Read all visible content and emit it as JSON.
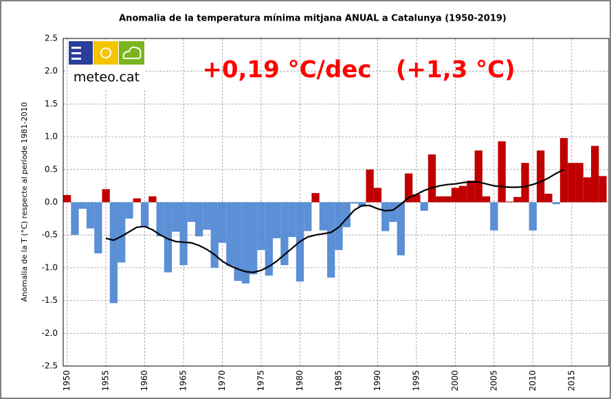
{
  "chart_data": {
    "type": "bar",
    "title": "Anomalia de la temperatura mínima mitjana ANUAL a Catalunya (1950-2019)",
    "y_label": "Anomalia de la T (°C) respecte al període 1981-2010",
    "annotation": "+0,19 °C/dec   (+1,3 °C)",
    "logo_text": "meteo.cat",
    "x": [
      1950,
      1951,
      1952,
      1953,
      1954,
      1955,
      1956,
      1957,
      1958,
      1959,
      1960,
      1961,
      1962,
      1963,
      1964,
      1965,
      1966,
      1967,
      1968,
      1969,
      1970,
      1971,
      1972,
      1973,
      1974,
      1975,
      1976,
      1977,
      1978,
      1979,
      1980,
      1981,
      1982,
      1983,
      1984,
      1985,
      1986,
      1987,
      1988,
      1989,
      1990,
      1991,
      1992,
      1993,
      1994,
      1995,
      1996,
      1997,
      1998,
      1999,
      2000,
      2001,
      2002,
      2003,
      2004,
      2005,
      2006,
      2007,
      2008,
      2009,
      2010,
      2011,
      2012,
      2013,
      2014,
      2015,
      2016,
      2017,
      2018,
      2019
    ],
    "values": [
      0.11,
      -0.5,
      -0.1,
      -0.4,
      -0.78,
      0.2,
      -1.54,
      -0.92,
      -0.25,
      0.06,
      -0.38,
      0.09,
      -0.52,
      -1.07,
      -0.45,
      -0.96,
      -0.3,
      -0.52,
      -0.42,
      -1.0,
      -0.62,
      -0.97,
      -1.2,
      -1.24,
      -1.1,
      -0.73,
      -1.12,
      -0.55,
      -0.96,
      -0.53,
      -1.21,
      -0.44,
      0.14,
      -0.43,
      -1.15,
      -0.73,
      -0.38,
      -0.02,
      -0.07,
      0.5,
      0.22,
      -0.44,
      -0.3,
      -0.81,
      0.44,
      0.12,
      -0.13,
      0.73,
      0.09,
      0.09,
      0.22,
      0.25,
      0.33,
      0.79,
      0.09,
      -0.43,
      0.93,
      0.01,
      0.08,
      0.6,
      -0.43,
      0.79,
      0.13,
      -0.03,
      0.98,
      0.6,
      0.6,
      0.38,
      0.86,
      0.4
    ],
    "positive_color": "#c00000",
    "negative_color": "#5b8fd6",
    "trend": {
      "color": "#000000",
      "x": [
        1955,
        1956,
        1957,
        1958,
        1959,
        1960,
        1961,
        1962,
        1963,
        1964,
        1965,
        1966,
        1967,
        1968,
        1969,
        1970,
        1971,
        1972,
        1973,
        1974,
        1975,
        1976,
        1977,
        1978,
        1979,
        1980,
        1981,
        1982,
        1983,
        1984,
        1985,
        1986,
        1987,
        1988,
        1989,
        1990,
        1991,
        1992,
        1993,
        1994,
        1995,
        1996,
        1997,
        1998,
        1999,
        2000,
        2001,
        2002,
        2003,
        2004,
        2005,
        2006,
        2007,
        2008,
        2009,
        2010,
        2011,
        2012,
        2013,
        2014
      ],
      "values": [
        -0.55,
        -0.58,
        -0.52,
        -0.45,
        -0.38,
        -0.37,
        -0.42,
        -0.5,
        -0.56,
        -0.6,
        -0.61,
        -0.62,
        -0.66,
        -0.72,
        -0.8,
        -0.9,
        -0.97,
        -1.02,
        -1.06,
        -1.07,
        -1.04,
        -0.98,
        -0.9,
        -0.8,
        -0.7,
        -0.6,
        -0.53,
        -0.5,
        -0.48,
        -0.46,
        -0.38,
        -0.25,
        -0.12,
        -0.05,
        -0.05,
        -0.1,
        -0.13,
        -0.12,
        -0.03,
        0.07,
        0.12,
        0.18,
        0.22,
        0.25,
        0.27,
        0.28,
        0.3,
        0.31,
        0.31,
        0.28,
        0.25,
        0.24,
        0.23,
        0.23,
        0.24,
        0.27,
        0.31,
        0.37,
        0.44,
        0.5
      ]
    },
    "xlim": [
      1949.5,
      2019.8
    ],
    "xticks": [
      1950,
      1955,
      1960,
      1965,
      1970,
      1975,
      1980,
      1985,
      1990,
      1995,
      2000,
      2005,
      2010,
      2015
    ],
    "ylim": [
      -2.5,
      2.5
    ],
    "yticks": [
      {
        "value": -2.5,
        "label": "-2.5"
      },
      {
        "value": -2,
        "label": "-2.0"
      },
      -1.5,
      {
        "value": -1,
        "label": "-1.0"
      },
      -0.5,
      {
        "value": 0,
        "label": "0.0"
      },
      0.5,
      {
        "value": 1,
        "label": "1.0"
      },
      1.5,
      {
        "value": 2,
        "label": "2.0"
      },
      2.5
    ],
    "grid": true
  }
}
